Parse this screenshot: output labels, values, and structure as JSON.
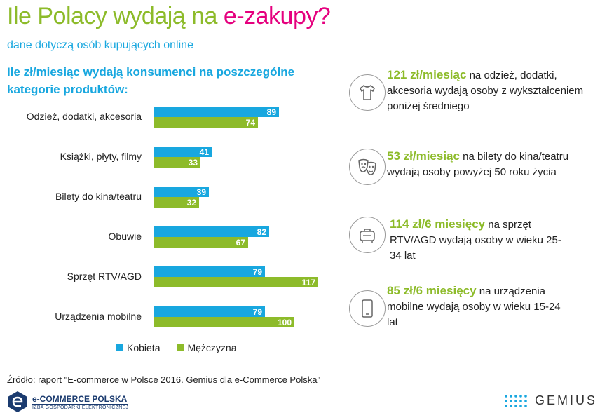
{
  "title": {
    "part1": "Ile Polacy wydają na ",
    "part2": "e-zakupy?"
  },
  "subtitle": "dane dotyczą osób kupujących online",
  "chart_heading": "Ile zł/miesiąc wydają konsumenci na poszczególne kategorie produktów:",
  "chart_data": {
    "type": "bar",
    "orientation": "horizontal",
    "categories": [
      "Odzież, dodatki, akcesoria",
      "Książki, płyty, filmy",
      "Bilety do kina/teatru",
      "Obuwie",
      "Sprzęt RTV/AGD",
      "Urządzenia mobilne"
    ],
    "series": [
      {
        "name": "Kobieta",
        "color": "#18a7df",
        "values": [
          89,
          41,
          39,
          82,
          79,
          79
        ]
      },
      {
        "name": "Mężczyzna",
        "color": "#8dbb2a",
        "values": [
          74,
          33,
          32,
          67,
          117,
          100
        ]
      }
    ],
    "xlim": [
      0,
      130
    ],
    "grid": false,
    "legend": "bottom"
  },
  "facts": [
    {
      "highlight": "121 zł/miesiąc",
      "text": " na odzież, dodatki, akcesoria wydają osoby z wykształceniem poniżej średniego",
      "icon": "tshirt-icon"
    },
    {
      "highlight": "53 zł/miesiąc",
      "text": " na bilety do kina/teatru wydają osoby powyżej 50 roku życia",
      "icon": "theater-masks-icon"
    },
    {
      "highlight": "114 zł/6 miesięcy",
      "text": " na sprzęt RTV/AGD wydają osoby w wieku 25-34 lat",
      "icon": "appliance-icon"
    },
    {
      "highlight": "85 zł/6 miesięcy",
      "text": " na urządzenia mobilne wydają osoby w wieku 15-24 lat",
      "icon": "smartphone-icon"
    }
  ],
  "source": "Źródło: raport \"E-commerce w Polsce 2016. Gemius dla e-Commerce Polska\"",
  "logos": {
    "ecommerce_name": "e-COMMERCE POLSKA",
    "ecommerce_sub": "IZBA GOSPODARKI ELEKTRONICZNEJ",
    "gemius": "GEMIUS"
  }
}
